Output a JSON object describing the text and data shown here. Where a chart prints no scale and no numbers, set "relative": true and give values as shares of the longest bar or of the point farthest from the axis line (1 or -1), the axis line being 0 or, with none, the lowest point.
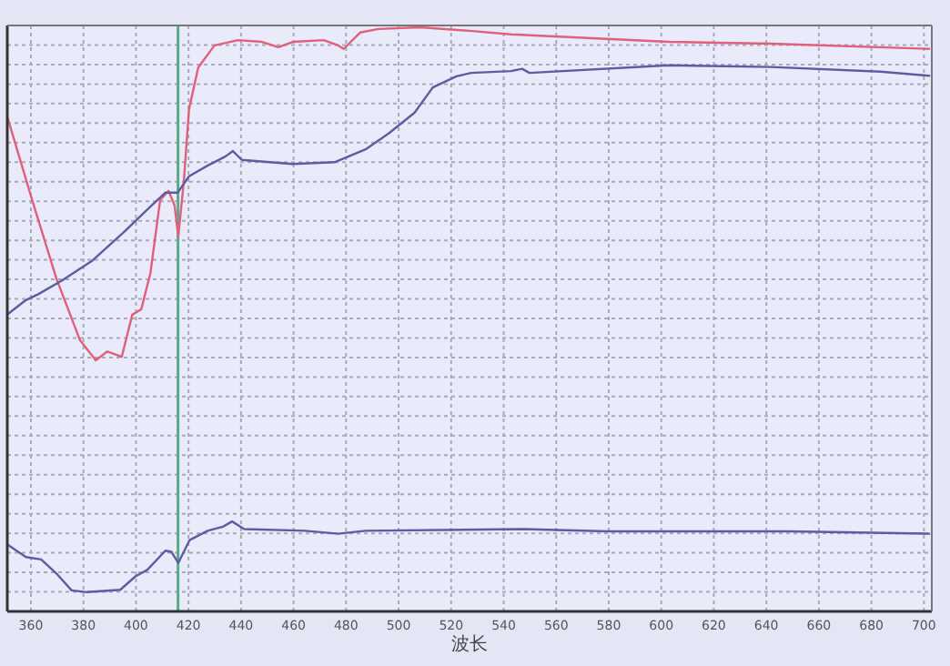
{
  "chart_data": {
    "type": "line",
    "xlabel": "波长",
    "xlim": [
      351,
      703
    ],
    "xticks": [
      360,
      380,
      400,
      420,
      440,
      460,
      480,
      500,
      520,
      540,
      560,
      580,
      600,
      620,
      640,
      660,
      680,
      700
    ],
    "relative": true,
    "grid": true,
    "ref_lines": [
      {
        "axis": "x",
        "value": 416,
        "color": "#5aaa88"
      }
    ],
    "series": [
      {
        "color": "#e0607a",
        "x": [
          351.2,
          360.5,
          369.7,
          378.7,
          384.7,
          389.1,
          394.6,
          398.6,
          402,
          405.5,
          409.2,
          412.4,
          414.7,
          416.1,
          418.2,
          420.2,
          423.7,
          429.9,
          438.9,
          448,
          454.2,
          459.7,
          471.5,
          477,
          479.1,
          485.3,
          492.3,
          508.2,
          526.9,
          542.8,
          603,
          641.9,
          702
        ],
        "values": [
          0.844,
          0.704,
          0.57,
          0.464,
          0.43,
          0.445,
          0.436,
          0.508,
          0.517,
          0.579,
          0.704,
          0.72,
          0.695,
          0.642,
          0.735,
          0.86,
          0.931,
          0.969,
          0.978,
          0.975,
          0.966,
          0.975,
          0.978,
          0.969,
          0.963,
          0.991,
          0.997,
          1.0,
          0.994,
          0.988,
          0.975,
          0.972,
          0.963
        ]
      },
      {
        "color": "#5a5ea0",
        "x": [
          351.2,
          358.1,
          362.8,
          372,
          383.5,
          395.1,
          404.3,
          411.2,
          415.9,
          420.2,
          427.2,
          434.1,
          436.9,
          440.3,
          459.7,
          475.6,
          487.4,
          496.4,
          506.1,
          513,
          522,
          527.6,
          542.8,
          547,
          549.8,
          603,
          641.9,
          683.4,
          702
        ],
        "values": [
          0.509,
          0.533,
          0.543,
          0.567,
          0.601,
          0.648,
          0.688,
          0.717,
          0.717,
          0.745,
          0.763,
          0.779,
          0.788,
          0.773,
          0.766,
          0.769,
          0.791,
          0.819,
          0.854,
          0.897,
          0.916,
          0.922,
          0.925,
          0.929,
          0.922,
          0.935,
          0.932,
          0.924,
          0.917
        ]
      },
      {
        "color": "#5a5ea0",
        "x": [
          351.2,
          358.1,
          363.9,
          369.7,
          375.5,
          381.3,
          394,
          399.8,
          404.3,
          411.2,
          413.5,
          416.1,
          420.4,
          427.3,
          433.1,
          436.6,
          441.2,
          464.3,
          477,
          487.4,
          547.4,
          579.5,
          648.8,
          702
        ],
        "values": [
          0.114,
          0.093,
          0.089,
          0.065,
          0.036,
          0.033,
          0.037,
          0.06,
          0.071,
          0.104,
          0.102,
          0.083,
          0.122,
          0.138,
          0.145,
          0.154,
          0.141,
          0.138,
          0.133,
          0.138,
          0.141,
          0.137,
          0.137,
          0.133
        ]
      }
    ]
  }
}
